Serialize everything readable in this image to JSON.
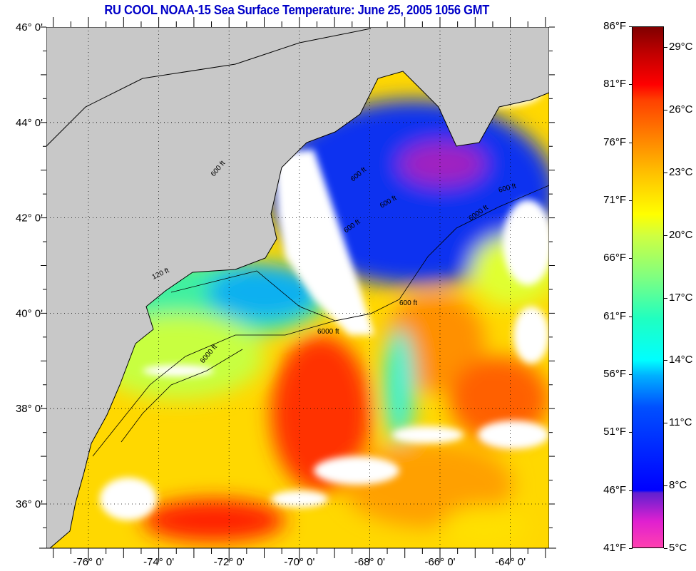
{
  "title": "RU COOL  NOAA-15  Sea Surface Temperature:  June 25, 2005 1056 GMT",
  "latitude_labels": [
    {
      "value": 46,
      "label": "46° 0'"
    },
    {
      "value": 44,
      "label": "44° 0'"
    },
    {
      "value": 42,
      "label": "42° 0'"
    },
    {
      "value": 40,
      "label": "40° 0'"
    },
    {
      "value": 38,
      "label": "38° 0'"
    },
    {
      "value": 36,
      "label": "36° 0'"
    }
  ],
  "longitude_labels": [
    {
      "value": -76,
      "label": "-76° 0'"
    },
    {
      "value": -74,
      "label": "-74° 0'"
    },
    {
      "value": -72,
      "label": "-72° 0'"
    },
    {
      "value": -70,
      "label": "-70° 0'"
    },
    {
      "value": -68,
      "label": "-68° 0'"
    },
    {
      "value": -66,
      "label": "-66° 0'"
    },
    {
      "value": -64,
      "label": "-64° 0'"
    }
  ],
  "contour_labels": [
    "600 ft",
    "600 ft",
    "600 ft",
    "600 ft",
    "600 ft",
    "6000 ft",
    "6000 ft",
    "120 ft",
    "600 ft",
    "6000 ft"
  ],
  "colorbar": {
    "fahrenheit": [
      {
        "value": 86,
        "label": "86°F"
      },
      {
        "value": 81,
        "label": "81°F"
      },
      {
        "value": 76,
        "label": "76°F"
      },
      {
        "value": 71,
        "label": "71°F"
      },
      {
        "value": 66,
        "label": "66°F"
      },
      {
        "value": 61,
        "label": "61°F"
      },
      {
        "value": 56,
        "label": "56°F"
      },
      {
        "value": 51,
        "label": "51°F"
      },
      {
        "value": 46,
        "label": "46°F"
      },
      {
        "value": 41,
        "label": "41°F"
      }
    ],
    "celsius": [
      {
        "value": 29,
        "label": "29°C"
      },
      {
        "value": 26,
        "label": "26°C"
      },
      {
        "value": 23,
        "label": "23°C"
      },
      {
        "value": 20,
        "label": "20°C"
      },
      {
        "value": 17,
        "label": "17°C"
      },
      {
        "value": 14,
        "label": "14°C"
      },
      {
        "value": 11,
        "label": "11°C"
      },
      {
        "value": 8,
        "label": "8°C"
      },
      {
        "value": 5,
        "label": "5°C"
      }
    ],
    "range_f": [
      41,
      86
    ]
  },
  "colors": {
    "title": "#0000c8",
    "land": "#c8c8c8",
    "cloud": "#ffffff"
  }
}
